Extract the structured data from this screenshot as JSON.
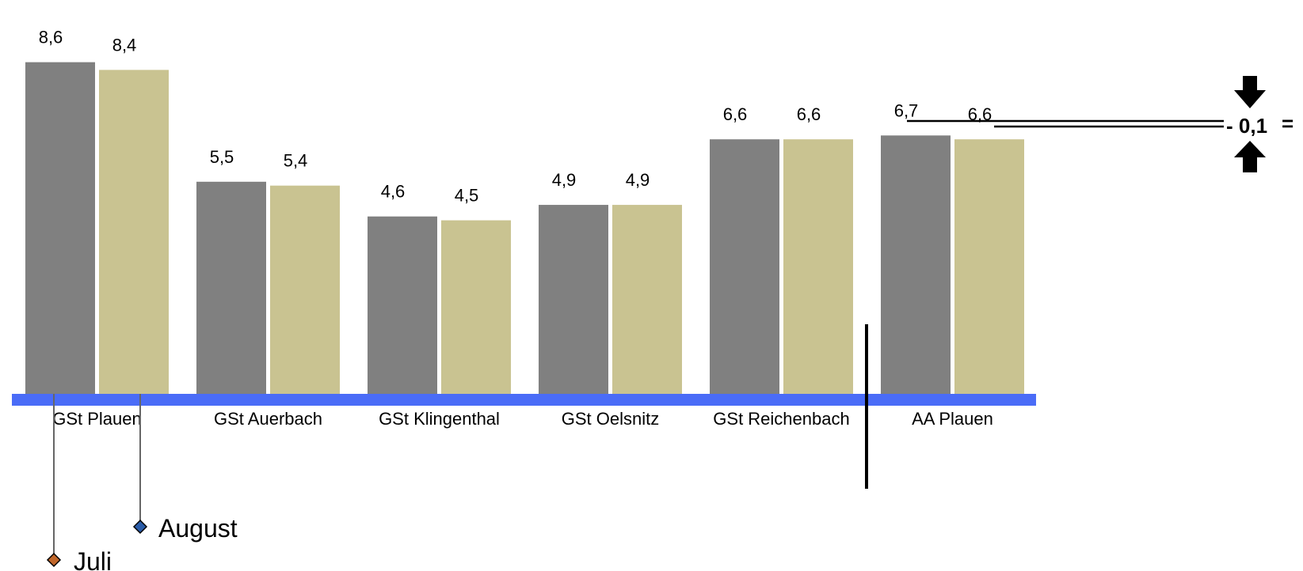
{
  "chart_data": {
    "type": "bar",
    "categories": [
      "GSt Plauen",
      "GSt Auerbach",
      "GSt Klingenthal",
      "GSt Oelsnitz",
      "GSt Reichenbach",
      "AA Plauen"
    ],
    "series": [
      {
        "name": "Juli",
        "values": [
          8.6,
          5.5,
          4.6,
          4.9,
          6.6,
          6.7
        ],
        "labels": [
          "8,6",
          "5,5",
          "4,6",
          "4,9",
          "6,6",
          "6,7"
        ]
      },
      {
        "name": "August",
        "values": [
          8.4,
          5.4,
          4.5,
          4.9,
          6.6,
          6.6
        ],
        "labels": [
          "8,4",
          "5,4",
          "4,5",
          "4,9",
          "6,6",
          "6,6"
        ]
      }
    ],
    "ylim": [
      0,
      9.7
    ],
    "title": "",
    "xlabel": "",
    "ylabel": "",
    "grid": false,
    "colors": {
      "Juli": "#808080",
      "August": "#c9c391",
      "axis": "#4a6cf7",
      "legend_juli_marker": "#c0662a",
      "legend_august_marker": "#2a5ca8"
    },
    "annotation": {
      "text": "- 0,1",
      "suffix": "=",
      "icons": [
        "arrow-down-icon",
        "arrow-up-icon"
      ]
    }
  }
}
